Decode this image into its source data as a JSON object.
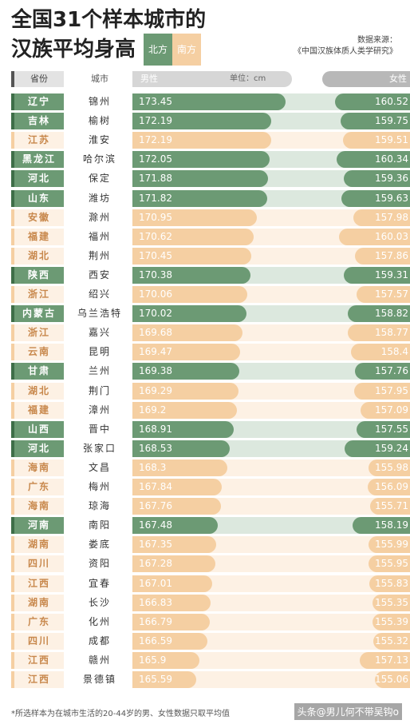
{
  "title_line1": "全国31个样本城市的",
  "title_line2": "汉族平均身高",
  "legend": {
    "north": "北方",
    "south": "南方"
  },
  "source_line1": "数据来源：",
  "source_line2": "《中国汉族体质人类学研究》",
  "header": {
    "province": "省份",
    "city": "城市",
    "male": "男性",
    "unit": "单位：cm",
    "female": "女性"
  },
  "colors": {
    "north_bar": "#6c9a74",
    "north_track": "#dce8de",
    "south_bar": "#f5cfa2",
    "south_track": "#fdf1e4",
    "north_text": "#3e6e48",
    "south_text": "#c8884c"
  },
  "footer": "*所选样本为在城市生活的20-44岁的男、女性数据只取平均值",
  "watermark": "头条@男儿何不带吴钩o",
  "chart_data": {
    "type": "bar",
    "title": "全国31个样本城市的汉族平均身高",
    "unit": "cm",
    "xlim_male": [
      160,
      174
    ],
    "xlim_female": [
      150,
      161
    ],
    "series": [
      {
        "name": "男性"
      },
      {
        "name": "女性"
      }
    ],
    "rows": [
      {
        "province": "辽宁",
        "city": "锦州",
        "male": 173.45,
        "female": 160.52,
        "region": "north"
      },
      {
        "province": "吉林",
        "city": "榆树",
        "male": 172.19,
        "female": 159.75,
        "region": "north"
      },
      {
        "province": "江苏",
        "city": "淮安",
        "male": 172.19,
        "female": 159.51,
        "region": "south"
      },
      {
        "province": "黑龙江",
        "city": "哈尔滨",
        "male": 172.05,
        "female": 160.34,
        "region": "north"
      },
      {
        "province": "河北",
        "city": "保定",
        "male": 171.88,
        "female": 159.36,
        "region": "north"
      },
      {
        "province": "山东",
        "city": "潍坊",
        "male": 171.82,
        "female": 159.63,
        "region": "north"
      },
      {
        "province": "安徽",
        "city": "滁州",
        "male": 170.95,
        "female": 157.98,
        "region": "south"
      },
      {
        "province": "福建",
        "city": "福州",
        "male": 170.62,
        "female": 160.03,
        "region": "south"
      },
      {
        "province": "湖北",
        "city": "荆州",
        "male": 170.45,
        "female": 157.86,
        "region": "south"
      },
      {
        "province": "陕西",
        "city": "西安",
        "male": 170.38,
        "female": 159.31,
        "region": "north"
      },
      {
        "province": "浙江",
        "city": "绍兴",
        "male": 170.06,
        "female": 157.57,
        "region": "south"
      },
      {
        "province": "内蒙古",
        "city": "乌兰浩特",
        "male": 170.02,
        "female": 158.82,
        "region": "north"
      },
      {
        "province": "浙江",
        "city": "嘉兴",
        "male": 169.68,
        "female": 158.77,
        "region": "south"
      },
      {
        "province": "云南",
        "city": "昆明",
        "male": 169.47,
        "female": 158.4,
        "region": "south"
      },
      {
        "province": "甘肃",
        "city": "兰州",
        "male": 169.38,
        "female": 157.76,
        "region": "north"
      },
      {
        "province": "湖北",
        "city": "荆门",
        "male": 169.29,
        "female": 157.95,
        "region": "south"
      },
      {
        "province": "福建",
        "city": "漳州",
        "male": 169.2,
        "female": 157.09,
        "region": "south"
      },
      {
        "province": "山西",
        "city": "晋中",
        "male": 168.91,
        "female": 157.55,
        "region": "north"
      },
      {
        "province": "河北",
        "city": "张家口",
        "male": 168.53,
        "female": 159.24,
        "region": "north"
      },
      {
        "province": "海南",
        "city": "文昌",
        "male": 168.3,
        "female": 155.98,
        "region": "south"
      },
      {
        "province": "广东",
        "city": "梅州",
        "male": 167.84,
        "female": 156.09,
        "region": "south"
      },
      {
        "province": "海南",
        "city": "琼海",
        "male": 167.76,
        "female": 155.71,
        "region": "south"
      },
      {
        "province": "河南",
        "city": "南阳",
        "male": 167.48,
        "female": 158.19,
        "region": "north"
      },
      {
        "province": "湖南",
        "city": "娄底",
        "male": 167.35,
        "female": 155.99,
        "region": "south"
      },
      {
        "province": "四川",
        "city": "资阳",
        "male": 167.28,
        "female": 155.95,
        "region": "south"
      },
      {
        "province": "江西",
        "city": "宜春",
        "male": 167.01,
        "female": 155.83,
        "region": "south"
      },
      {
        "province": "湖南",
        "city": "长沙",
        "male": 166.83,
        "female": 155.35,
        "region": "south"
      },
      {
        "province": "广东",
        "city": "化州",
        "male": 166.79,
        "female": 155.39,
        "region": "south"
      },
      {
        "province": "四川",
        "city": "成都",
        "male": 166.59,
        "female": 155.32,
        "region": "south"
      },
      {
        "province": "江西",
        "city": "赣州",
        "male": 165.9,
        "female": 157.13,
        "region": "south"
      },
      {
        "province": "江西",
        "city": "景德镇",
        "male": 165.59,
        "female": 155.06,
        "region": "south"
      }
    ]
  }
}
